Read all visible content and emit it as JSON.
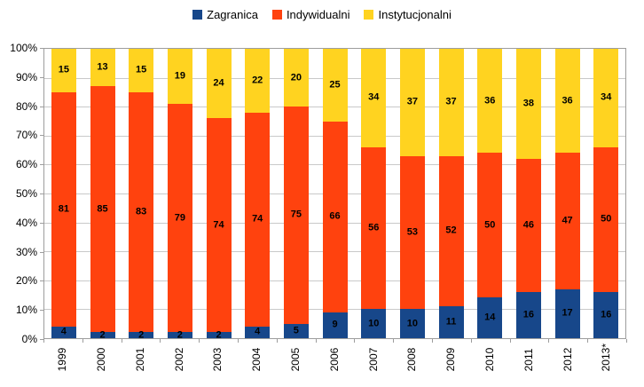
{
  "legend": {
    "position": "top",
    "items": [
      {
        "label": "Zagranica",
        "color": "#17478a"
      },
      {
        "label": "Indywidualni",
        "color": "#ff420e"
      },
      {
        "label": "Instytucjonalni",
        "color": "#ffd320"
      }
    ]
  },
  "chart_data": {
    "type": "bar",
    "subtype": "stacked-100-percent",
    "title": "",
    "xlabel": "",
    "ylabel": "",
    "categories": [
      "1999",
      "2000",
      "2001",
      "2002",
      "2003",
      "2004",
      "2005",
      "2006",
      "2007",
      "2008",
      "2009",
      "2010",
      "2011",
      "2012",
      "2013*"
    ],
    "series": [
      {
        "name": "Zagranica",
        "color": "#17478a",
        "values": [
          4,
          2,
          2,
          2,
          2,
          4,
          5,
          9,
          10,
          10,
          11,
          14,
          16,
          17,
          16
        ]
      },
      {
        "name": "Indywidualni",
        "color": "#ff420e",
        "values": [
          81,
          85,
          83,
          79,
          74,
          74,
          75,
          66,
          56,
          53,
          52,
          50,
          46,
          47,
          50
        ]
      },
      {
        "name": "Instytucjonalni",
        "color": "#ffd320",
        "values": [
          15,
          13,
          15,
          19,
          24,
          22,
          20,
          25,
          34,
          37,
          37,
          36,
          38,
          36,
          34
        ]
      }
    ],
    "y_ticks": [
      "100%",
      "90%",
      "80%",
      "70%",
      "60%",
      "50%",
      "40%",
      "30%",
      "20%",
      "10%",
      "0%"
    ],
    "ylim": [
      0,
      100
    ],
    "grid": true,
    "legend_position": "top",
    "colors": {
      "gridline": "#c9c9c9",
      "frame": "#9d9d9d",
      "value_label": "#000000",
      "background": "#ffffff"
    }
  }
}
